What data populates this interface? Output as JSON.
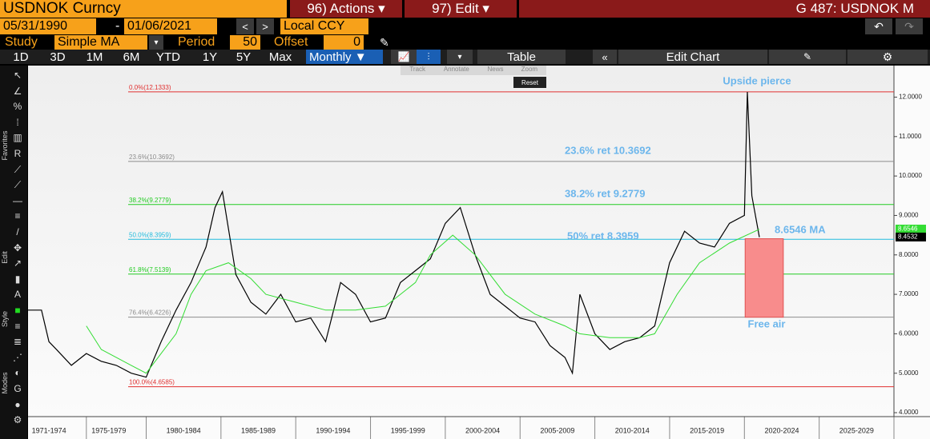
{
  "ui": {
    "ticker": "USDNOK Curncy",
    "actions": "96) Actions ▾",
    "edit": "97) Edit ▾",
    "screen": "G 487: USDNOK M",
    "start_date": "05/31/1990",
    "dash": "-",
    "end_date": "01/06/2021",
    "currency": "Local CCY",
    "study_label": "Study",
    "study": "Simple MA",
    "period_label": "Period",
    "period": "50",
    "offset_label": "Offset",
    "offset": "0",
    "ranges": [
      "1D",
      "3D",
      "1M",
      "6M",
      "YTD",
      "1Y",
      "5Y",
      "Max"
    ],
    "frequency": "Monthly ▼",
    "table": "Table",
    "edit_chart": "Edit Chart",
    "popup": [
      "Track",
      "Annotate",
      "News",
      "Zoom"
    ],
    "reset": "Reset",
    "side_labels": [
      "Favorites",
      "Edit",
      "Style",
      "Modes"
    ]
  },
  "chart_data": {
    "type": "line",
    "xlim": [
      1972.1,
      2030
    ],
    "ylim": [
      3.9,
      12.8
    ],
    "xticks": [
      {
        "value": 1973.5,
        "label": "1971-1974"
      },
      {
        "value": 1977.5,
        "label": "1975-1979"
      },
      {
        "value": 1982.5,
        "label": "1980-1984"
      },
      {
        "value": 1987.5,
        "label": "1985-1989"
      },
      {
        "value": 1992.5,
        "label": "1990-1994"
      },
      {
        "value": 1997.5,
        "label": "1995-1999"
      },
      {
        "value": 2002.5,
        "label": "2000-2004"
      },
      {
        "value": 2007.5,
        "label": "2005-2009"
      },
      {
        "value": 2012.5,
        "label": "2010-2014"
      },
      {
        "value": 2017.5,
        "label": "2015-2019"
      },
      {
        "value": 2022.5,
        "label": "2020-2024"
      },
      {
        "value": 2027.5,
        "label": "2025-2029"
      }
    ],
    "yticks": [
      {
        "value": 4,
        "label": "4.0000"
      },
      {
        "value": 5,
        "label": "5.0000"
      },
      {
        "value": 6,
        "label": "6.0000"
      },
      {
        "value": 7,
        "label": "7.0000"
      },
      {
        "value": 8,
        "label": "8.0000"
      },
      {
        "value": 9,
        "label": "9.0000"
      },
      {
        "value": 10,
        "label": "10.0000"
      },
      {
        "value": 11,
        "label": "11.0000"
      },
      {
        "value": 12,
        "label": "12.0000"
      }
    ],
    "series": [
      {
        "color": "#000000",
        "x": [
          1972.1,
          1973,
          1973.5,
          1974,
          1975,
          1976,
          1977,
          1978,
          1979,
          1980,
          1981,
          1982,
          1983,
          1984,
          1984.6,
          1985.1,
          1986,
          1987,
          1988,
          1989,
          1990,
          1991,
          1992,
          1993,
          1994,
          1995,
          1996,
          1997,
          1998,
          1999,
          2000,
          2001,
          2002,
          2003,
          2004,
          2005,
          2006,
          2007,
          2008,
          2008.5,
          2009,
          2010,
          2011,
          2012,
          2013,
          2014,
          2015,
          2016,
          2017,
          2018,
          2019,
          2020,
          2020.2,
          2020.5,
          2021
        ],
        "values": [
          6.6,
          6.6,
          5.8,
          5.6,
          5.2,
          5.5,
          5.3,
          5.2,
          5.0,
          4.9,
          5.8,
          6.6,
          7.3,
          8.2,
          9.2,
          9.6,
          7.5,
          6.8,
          6.5,
          7.0,
          6.3,
          6.4,
          5.8,
          7.3,
          7.0,
          6.3,
          6.4,
          7.3,
          7.6,
          7.9,
          8.8,
          9.2,
          8.0,
          7.0,
          6.7,
          6.4,
          6.3,
          5.7,
          5.4,
          5.0,
          7.0,
          6.0,
          5.6,
          5.8,
          5.9,
          6.2,
          7.8,
          8.6,
          8.3,
          8.2,
          8.8,
          9.0,
          12.13,
          9.5,
          8.45
        ]
      },
      {
        "color": "#33dd33",
        "x": [
          1976,
          1977,
          1979,
          1980,
          1982,
          1983,
          1984,
          1985.5,
          1987,
          1988,
          1990,
          1992,
          1994,
          1996,
          1998,
          1999,
          2000.5,
          2002,
          2004,
          2006,
          2008,
          2009,
          2011,
          2013,
          2014,
          2015.5,
          2017,
          2019,
          2021
        ],
        "values": [
          6.2,
          5.6,
          5.2,
          5.0,
          6.0,
          7.0,
          7.6,
          7.8,
          7.4,
          7.0,
          6.8,
          6.6,
          6.6,
          6.7,
          7.3,
          8.0,
          8.5,
          8.0,
          7.0,
          6.5,
          6.2,
          6.0,
          5.9,
          5.9,
          6.0,
          7.0,
          7.8,
          8.3,
          8.65
        ]
      }
    ],
    "fib_levels": [
      {
        "value": 12.1333,
        "label": "0.0%(12.1333)",
        "color": "#e03030"
      },
      {
        "value": 10.3692,
        "label": "23.6%(10.3692)",
        "color": "#8c8c8c"
      },
      {
        "value": 9.2779,
        "label": "38.2%(9.2779)",
        "color": "#22cc22"
      },
      {
        "value": 8.3959,
        "label": "50.0%(8.3959)",
        "color": "#22bbdd"
      },
      {
        "value": 7.5139,
        "label": "61.8%(7.5139)",
        "color": "#22cc22"
      },
      {
        "value": 6.4226,
        "label": "76.4%(6.4226)",
        "color": "#8c8c8c"
      },
      {
        "value": 4.6585,
        "label": "100.0%(4.6585)",
        "color": "#e03030"
      }
    ],
    "annotations": [
      "Upside pierce",
      "23.6% ret 10.3692",
      "38.2% ret 9.2779",
      "50% ret 8.3959",
      "8.6546 MA",
      "Free air"
    ],
    "box": {
      "x": [
        2020.05,
        2022.6
      ],
      "y": [
        6.42,
        8.41
      ],
      "color": "#f88c8c"
    },
    "last_labels": [
      {
        "value": 8.6546,
        "label": "8.6546",
        "color": "#33dd33"
      },
      {
        "value": 8.4532,
        "label": "8.4532",
        "color": "#000000"
      }
    ]
  }
}
